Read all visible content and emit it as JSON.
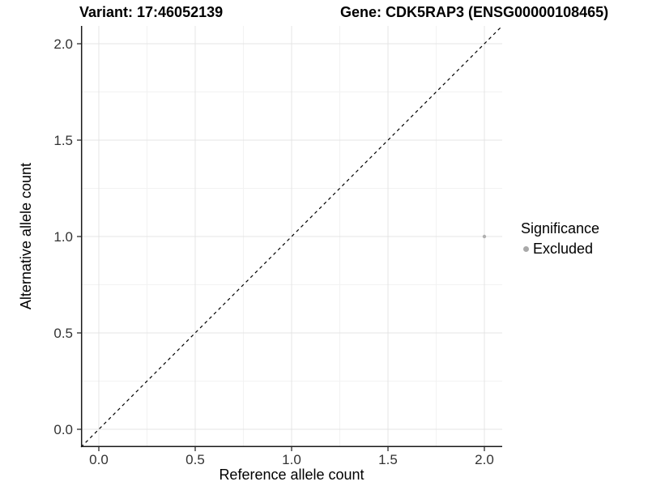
{
  "titles": {
    "variant": "Variant: 17:46052139",
    "gene": "Gene: CDK5RAP3 (ENSG00000108465)"
  },
  "axes": {
    "x_label": "Reference allele count",
    "y_label": "Alternative allele count"
  },
  "legend": {
    "title": "Significance",
    "items": [
      {
        "label": "Excluded",
        "color": "#a9a9a9"
      }
    ]
  },
  "colors": {
    "grid_major": "#e4e4e4",
    "grid_minor": "#f2f2f2",
    "axis": "#1a1a1a",
    "tick_label": "#333333",
    "text": "#000000",
    "excluded_point": "#b0b0b0"
  },
  "chart_data": {
    "type": "scatter",
    "title": "Variant: 17:46052139 | Gene: CDK5RAP3 (ENSG00000108465)",
    "xlabel": "Reference allele count",
    "ylabel": "Alternative allele count",
    "x_tick_labels": [
      "0.0",
      "0.5",
      "1.0",
      "1.5",
      "2.0"
    ],
    "y_tick_labels": [
      "0.0",
      "0.5",
      "1.0",
      "1.5",
      "2.0"
    ],
    "xlim": [
      -0.09,
      2.09
    ],
    "ylim": [
      -0.09,
      2.09
    ],
    "grid": "major+minor",
    "minor_break_step": 0.25,
    "legend_position": "right",
    "series": [
      {
        "name": "Excluded",
        "color": "#b0b0b0",
        "marker_size": 2.2,
        "points": [
          [
            2.0,
            1.0
          ]
        ]
      }
    ],
    "reference_line": {
      "slope": 1,
      "intercept": 0,
      "style": "dashed",
      "color": "#000000"
    }
  }
}
